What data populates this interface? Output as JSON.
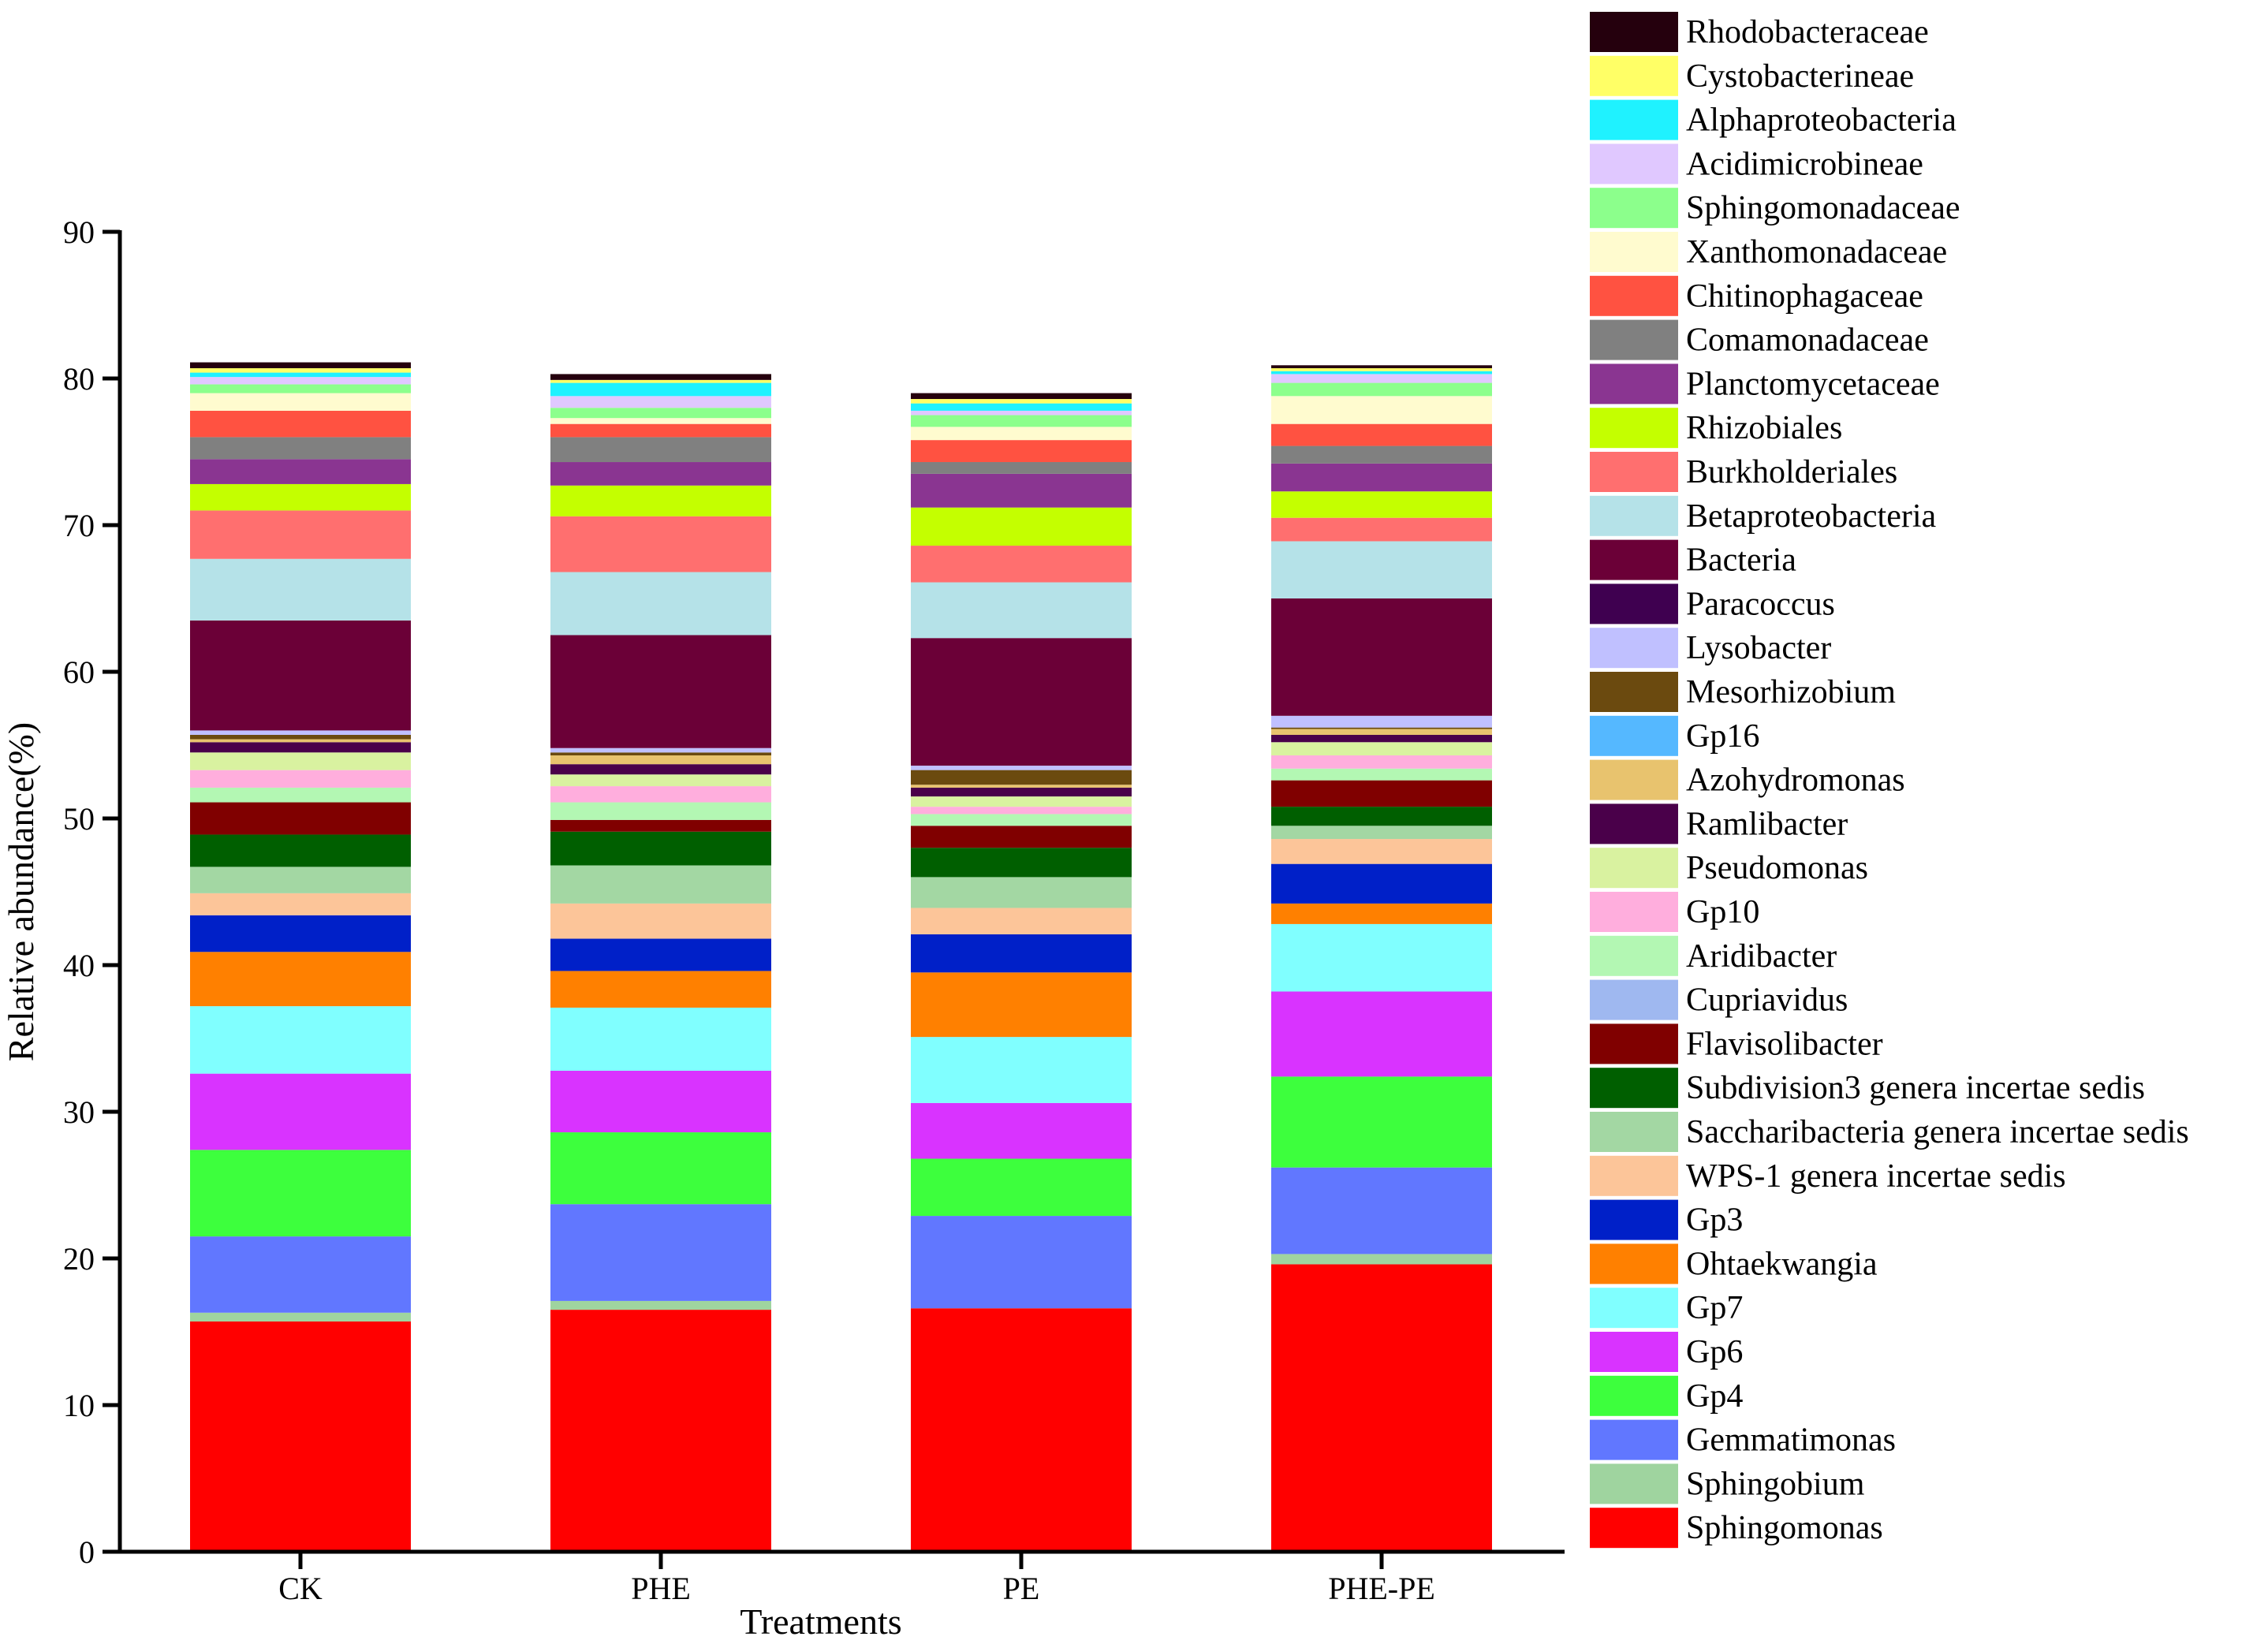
{
  "chart_data": {
    "type": "bar",
    "stacked": true,
    "title": "",
    "xlabel": "Treatments",
    "ylabel": "Relative abundance(%)",
    "ylim": [
      0,
      90
    ],
    "yticks": [
      0,
      10,
      20,
      30,
      40,
      50,
      60,
      70,
      80,
      90
    ],
    "grid": false,
    "legend_position": "right",
    "categories": [
      "CK",
      "PHE",
      "PE",
      "PHE-PE"
    ],
    "series": [
      {
        "name": "Sphingomonas",
        "color": "#ff0000",
        "values": [
          15.7,
          16.5,
          16.6,
          19.6
        ]
      },
      {
        "name": "Sphingobium",
        "color": "#9fd49f",
        "values": [
          0.6,
          0.6,
          0.0,
          0.7
        ]
      },
      {
        "name": "Gemmatimonas",
        "color": "#6177ff",
        "values": [
          5.2,
          6.6,
          6.3,
          5.9
        ]
      },
      {
        "name": "Gp4",
        "color": "#3dff3d",
        "values": [
          5.9,
          4.9,
          3.9,
          6.2
        ]
      },
      {
        "name": "Gp6",
        "color": "#d933ff",
        "values": [
          5.2,
          4.2,
          3.8,
          5.8
        ]
      },
      {
        "name": "Gp7",
        "color": "#80ffff",
        "values": [
          4.6,
          4.3,
          4.5,
          4.6
        ]
      },
      {
        "name": "Ohtaekwangia",
        "color": "#ff8000",
        "values": [
          3.7,
          2.5,
          4.4,
          1.4
        ]
      },
      {
        "name": "Gp3",
        "color": "#0020c8",
        "values": [
          2.5,
          2.2,
          2.6,
          2.7
        ]
      },
      {
        "name": "WPS-1 genera incertae sedis",
        "color": "#fcc599",
        "values": [
          1.5,
          2.4,
          1.8,
          1.7
        ]
      },
      {
        "name": "Saccharibacteria genera incertae sedis",
        "color": "#a3d7a3",
        "values": [
          1.8,
          2.6,
          2.1,
          0.9
        ]
      },
      {
        "name": "Subdivision3 genera incertae sedis",
        "color": "#005f00",
        "values": [
          2.2,
          2.3,
          2.0,
          1.3
        ]
      },
      {
        "name": "Flavisolibacter",
        "color": "#800000",
        "values": [
          2.2,
          0.8,
          1.5,
          1.8
        ]
      },
      {
        "name": "Cupriavidus",
        "color": "#9fb8f0",
        "values": [
          0.0,
          0.0,
          0.0,
          0.0
        ]
      },
      {
        "name": "Aridibacter",
        "color": "#b3f7b3",
        "values": [
          1.0,
          1.2,
          0.8,
          0.8
        ]
      },
      {
        "name": "Gp10",
        "color": "#ffaedd",
        "values": [
          1.2,
          1.1,
          0.5,
          0.9
        ]
      },
      {
        "name": "Pseudomonas",
        "color": "#d9f2a0",
        "values": [
          1.2,
          0.8,
          0.7,
          0.9
        ]
      },
      {
        "name": "Ramlibacter",
        "color": "#4a004a",
        "values": [
          0.7,
          0.7,
          0.6,
          0.5
        ]
      },
      {
        "name": "Azohydromonas",
        "color": "#e8c36e",
        "values": [
          0.2,
          0.6,
          0.2,
          0.4
        ]
      },
      {
        "name": "Gp16",
        "color": "#55b8ff",
        "values": [
          0.0,
          0.0,
          0.0,
          0.0
        ]
      },
      {
        "name": "Mesorhizobium",
        "color": "#6b4a0f",
        "values": [
          0.3,
          0.2,
          1.0,
          0.1
        ]
      },
      {
        "name": "Lysobacter",
        "color": "#c0c0ff",
        "values": [
          0.3,
          0.3,
          0.3,
          0.8
        ]
      },
      {
        "name": "Paracoccus",
        "color": "#3f0050",
        "values": [
          0.0,
          0.0,
          0.0,
          0.0
        ]
      },
      {
        "name": "Bacteria",
        "color": "#6b0037",
        "values": [
          7.5,
          7.7,
          8.7,
          8.0
        ]
      },
      {
        "name": "Betaproteobacteria",
        "color": "#b5e2e8",
        "values": [
          4.2,
          4.3,
          3.8,
          3.9
        ]
      },
      {
        "name": "Burkholderiales",
        "color": "#ff6f6f",
        "values": [
          3.3,
          3.8,
          2.5,
          1.6
        ]
      },
      {
        "name": "Rhizobiales",
        "color": "#c4ff00",
        "values": [
          1.8,
          2.1,
          2.6,
          1.8
        ]
      },
      {
        "name": "Planctomycetaceae",
        "color": "#8a3591",
        "values": [
          1.7,
          1.6,
          2.3,
          1.9
        ]
      },
      {
        "name": "Comamonadaceae",
        "color": "#808080",
        "values": [
          1.5,
          1.7,
          0.8,
          1.2
        ]
      },
      {
        "name": "Chitinophagaceae",
        "color": "#ff5241",
        "values": [
          1.8,
          0.9,
          1.5,
          1.5
        ]
      },
      {
        "name": "Xanthomonadaceae",
        "color": "#fffbcf",
        "values": [
          1.2,
          0.4,
          0.9,
          1.9
        ]
      },
      {
        "name": "Sphingomonadaceae",
        "color": "#8cff8c",
        "values": [
          0.6,
          0.7,
          0.8,
          0.9
        ]
      },
      {
        "name": "Acidimicrobineae",
        "color": "#e0c8ff",
        "values": [
          0.5,
          0.8,
          0.3,
          0.6
        ]
      },
      {
        "name": "Alphaproteobacteria",
        "color": "#1ff2ff",
        "values": [
          0.3,
          0.9,
          0.5,
          0.2
        ]
      },
      {
        "name": "Cystobacterineae",
        "color": "#ffff66",
        "values": [
          0.3,
          0.2,
          0.3,
          0.2
        ]
      },
      {
        "name": "Rhodobacteraceae",
        "color": "#25000d",
        "values": [
          0.4,
          0.4,
          0.4,
          0.2
        ]
      }
    ]
  }
}
